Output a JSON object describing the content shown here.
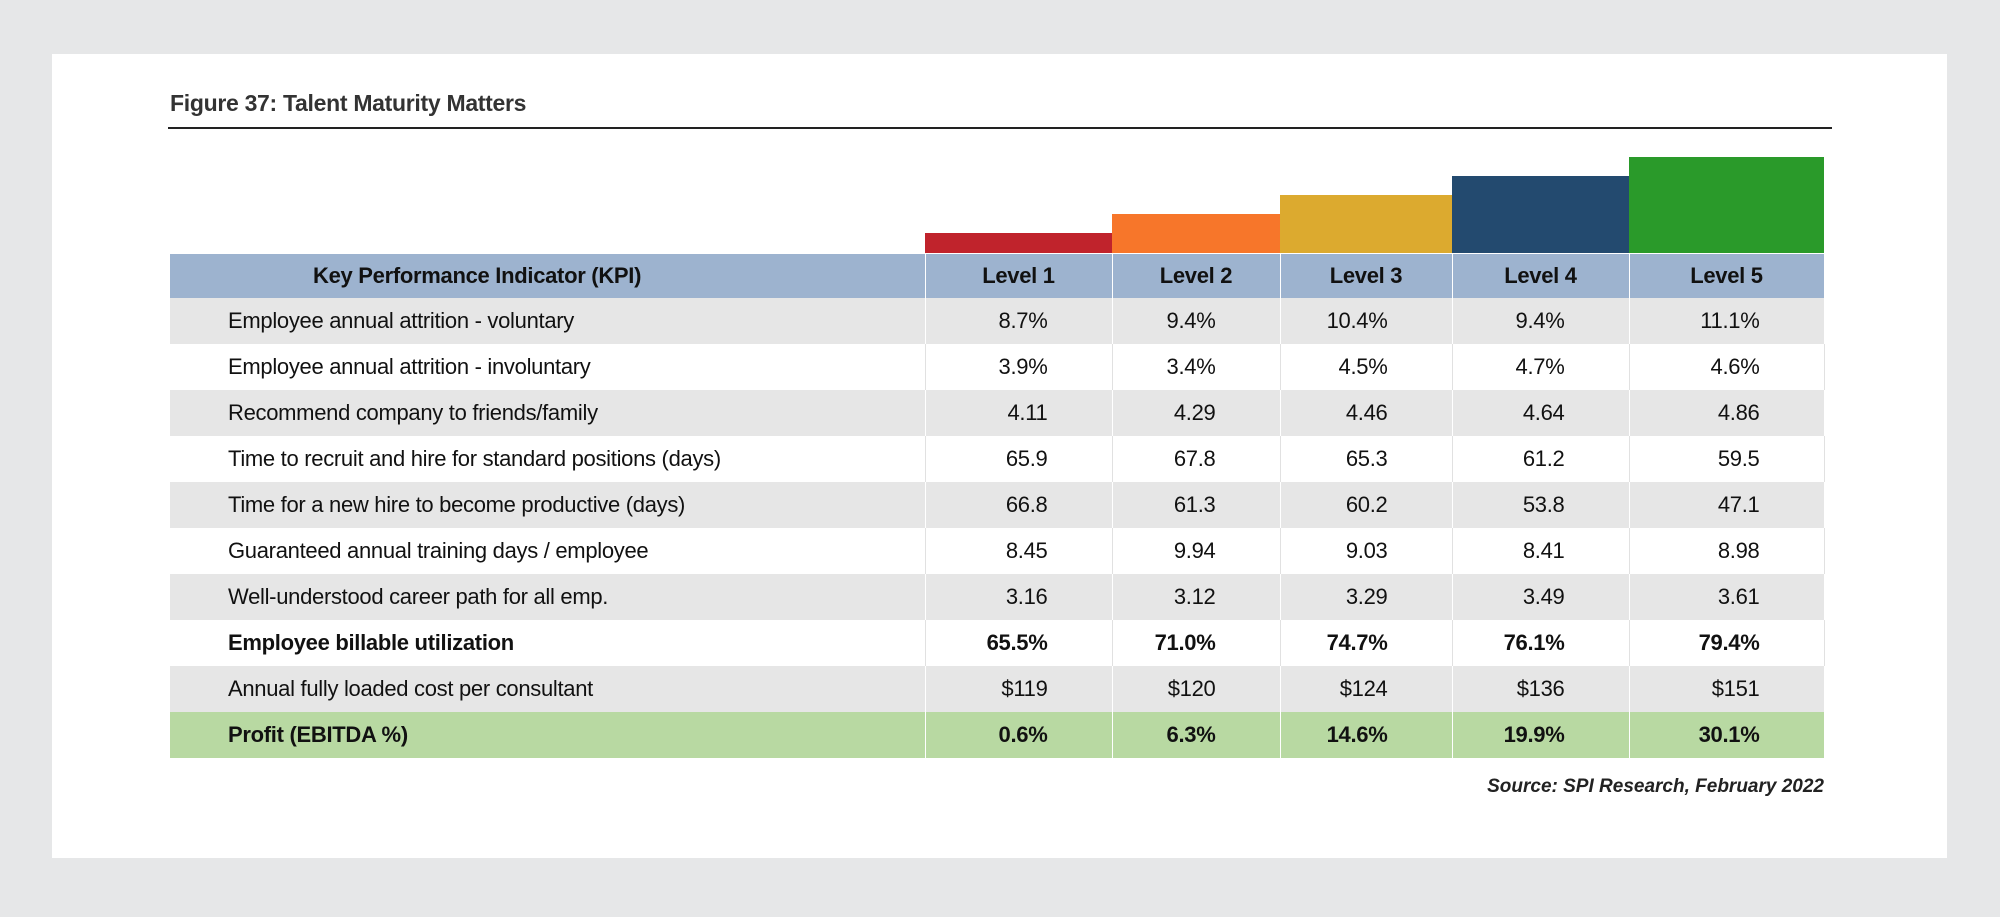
{
  "figure": {
    "title": "Figure 37:  Talent Maturity Matters",
    "source": "Source: SPI Research, February 2022"
  },
  "levels": [
    {
      "label": "Level 1",
      "color": "#c0232c"
    },
    {
      "label": "Level 2",
      "color": "#f7762a"
    },
    {
      "label": "Level 3",
      "color": "#dcaa2f"
    },
    {
      "label": "Level 4",
      "color": "#234a6f"
    },
    {
      "label": "Level 5",
      "color": "#2a9a2a"
    }
  ],
  "table": {
    "header": "Key Performance Indicator (KPI)",
    "rows": [
      {
        "kpi": "Employee annual attrition - voluntary",
        "values": [
          "8.7%",
          "9.4%",
          "10.4%",
          "9.4%",
          "11.1%"
        ]
      },
      {
        "kpi": "Employee annual attrition - involuntary",
        "values": [
          "3.9%",
          "3.4%",
          "4.5%",
          "4.7%",
          "4.6%"
        ]
      },
      {
        "kpi": "Recommend company to friends/family",
        "values": [
          "4.11",
          "4.29",
          "4.46",
          "4.64",
          "4.86"
        ]
      },
      {
        "kpi": "Time to recruit and hire for standard positions (days)",
        "values": [
          "65.9",
          "67.8",
          "65.3",
          "61.2",
          "59.5"
        ]
      },
      {
        "kpi": "Time for a new hire to become productive (days)",
        "values": [
          "66.8",
          "61.3",
          "60.2",
          "53.8",
          "47.1"
        ]
      },
      {
        "kpi": "Guaranteed annual training days / employee",
        "values": [
          "8.45",
          "9.94",
          "9.03",
          "8.41",
          "8.98"
        ]
      },
      {
        "kpi": "Well-understood career path for all emp.",
        "values": [
          "3.16",
          "3.12",
          "3.29",
          "3.49",
          "3.61"
        ]
      },
      {
        "kpi": "Employee billable utilization",
        "values": [
          "65.5%",
          "71.0%",
          "74.7%",
          "76.1%",
          "79.4%"
        ]
      },
      {
        "kpi": "Annual fully loaded cost per consultant",
        "values": [
          "$119",
          "$120",
          "$124",
          "$136",
          "$151"
        ]
      },
      {
        "kpi": "Profit (EBITDA %)",
        "values": [
          "0.6%",
          "6.3%",
          "14.6%",
          "19.9%",
          "30.1%"
        ]
      }
    ]
  }
}
